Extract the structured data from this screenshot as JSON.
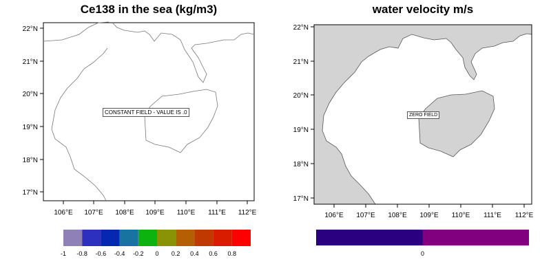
{
  "left_panel": {
    "title": "Ce138 in the sea (kg/m3)",
    "note": "CONSTANT FIELD - VALUE IS .0",
    "lat_labels": [
      "22°N",
      "21°N",
      "20°N",
      "19°N",
      "18°N",
      "17°N"
    ],
    "lon_labels": [
      "106°E",
      "107°E",
      "108°E",
      "109°E",
      "110°E",
      "111°E",
      "112°E"
    ],
    "colorbar": {
      "colors": [
        "#8f80b8",
        "#2d2fbf",
        "#0627b1",
        "#1873a0",
        "#0cb20e",
        "#8a9206",
        "#b55e03",
        "#bf3900",
        "#d91b00",
        "#ff0000"
      ],
      "labels": [
        "-1",
        "-0.8",
        "-0.6",
        "-0.4",
        "-0.2",
        "0",
        "0.2",
        "0.4",
        "0.6",
        "0.8"
      ]
    }
  },
  "right_panel": {
    "title": "water velocity m/s",
    "note": "ZERO FIELD",
    "lat_labels": [
      "22°N",
      "21°N",
      "20°N",
      "19°N",
      "18°N",
      "17°N"
    ],
    "lon_labels": [
      "106°E",
      "107°E",
      "108°E",
      "109°E",
      "110°E",
      "111°E",
      "112°E"
    ],
    "land_color": "#d3d3d3",
    "colorbar": {
      "colors": [
        "#2a0080",
        "#800080"
      ],
      "labels": [
        "0"
      ]
    }
  }
}
